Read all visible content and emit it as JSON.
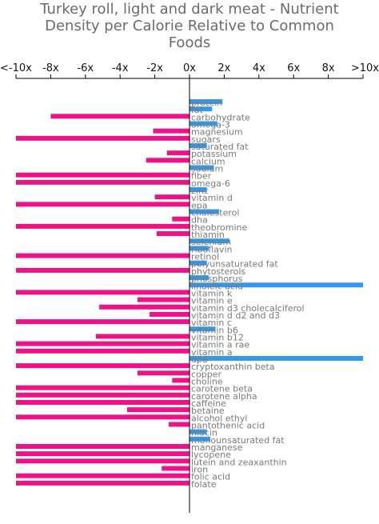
{
  "chart_data": {
    "type": "bar",
    "orientation": "horizontal",
    "title_lines": [
      "Turkey roll, light and dark meat - Nutrient",
      "Density per Calorie Relative to Common",
      "Foods"
    ],
    "xlim": [
      -10,
      10
    ],
    "x_ticks": [
      {
        "value": -10,
        "label": "<-10x"
      },
      {
        "value": -8,
        "label": "-8x"
      },
      {
        "value": -6,
        "label": "-6x"
      },
      {
        "value": -4,
        "label": "-4x"
      },
      {
        "value": -2,
        "label": "-2x"
      },
      {
        "value": 0,
        "label": "0x"
      },
      {
        "value": 2,
        "label": "2x"
      },
      {
        "value": 4,
        "label": "4x"
      },
      {
        "value": 6,
        "label": "6x"
      },
      {
        "value": 8,
        "label": "8x"
      },
      {
        "value": 10,
        "label": ">10x"
      }
    ],
    "colors": {
      "positive": "#3399ee",
      "negative": "#ee1188"
    },
    "categories": [
      "protein",
      "fat",
      "carbohydrate",
      "omega-3",
      "magnesium",
      "sugars",
      "saturated fat",
      "potassium",
      "calcium",
      "sodium",
      "fiber",
      "omega-6",
      "zinc",
      "vitamin d",
      "epa",
      "cholesterol",
      "dha",
      "theobromine",
      "thiamin",
      "selenium",
      "riboflavin",
      "retinol",
      "polyunsaturated fat",
      "phytosterols",
      "phosphorus",
      "linoleic acid",
      "vitamin k",
      "vitamin e",
      "vitamin d3 cholecalciferol",
      "vitamin d d2 and d3",
      "vitamin c",
      "vitamin b6",
      "vitamin b12",
      "vitamin a rae",
      "vitamin a",
      "dpa",
      "cryptoxanthin beta",
      "copper",
      "choline",
      "carotene beta",
      "carotene alpha",
      "caffeine",
      "betaine",
      "alcohol ethyl",
      "pantothenic acid",
      "niacin",
      "monounsaturated fat",
      "manganese",
      "lycopene",
      "lutein and zeaxanthin",
      "iron",
      "folic acid",
      "folate"
    ],
    "values": [
      1.9,
      1.3,
      -8,
      1.6,
      -2.1,
      -10,
      1.0,
      -1.3,
      -2.5,
      1.4,
      -10,
      -10,
      1.0,
      -2.0,
      -10,
      1.7,
      -1.0,
      -10,
      -1.9,
      2.3,
      1.1,
      -10,
      1.0,
      -10,
      1.1,
      10,
      -10,
      -3.0,
      -5.2,
      -2.3,
      -10,
      1.5,
      -5.4,
      -10,
      -10,
      10,
      -10,
      -3.0,
      -1.0,
      -10,
      -10,
      -10,
      -3.6,
      -10,
      -1.2,
      1.0,
      1.2,
      -10,
      -10,
      -10,
      -1.6,
      -10,
      -10
    ]
  }
}
